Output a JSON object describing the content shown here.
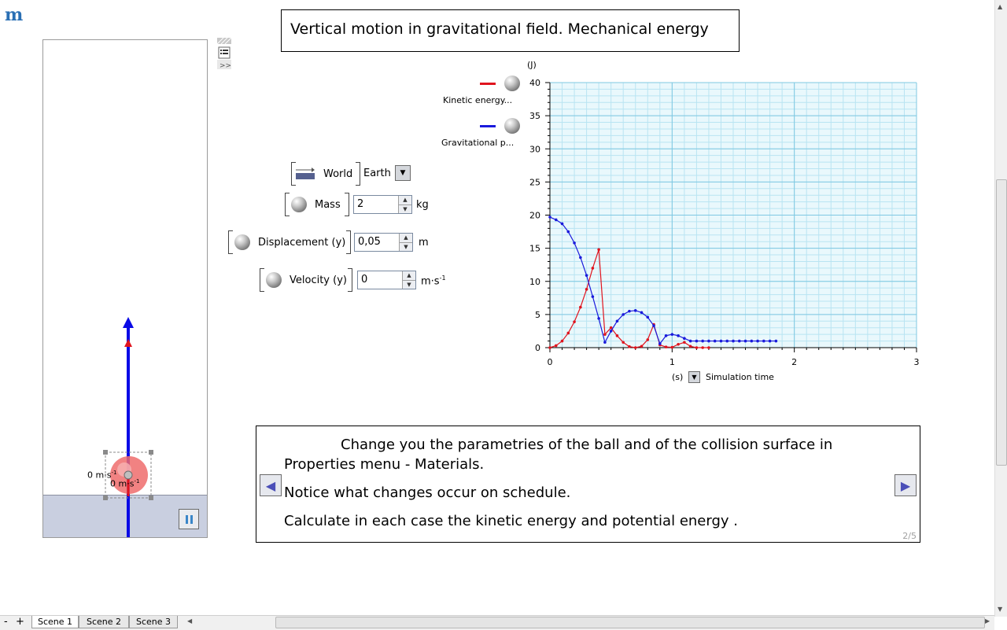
{
  "app": {
    "logo": "m"
  },
  "title": "Vertical motion in gravitational field. Mechanical energy",
  "scene": {
    "velocity_label_left": "0 m·s",
    "velocity_label_left_sup": "-1",
    "velocity_label_right": "0 m·s",
    "velocity_label_right_sup": "-1"
  },
  "controls": {
    "world": {
      "label": "World",
      "value": "Earth"
    },
    "mass": {
      "label": "Mass",
      "value": "2",
      "unit": "kg"
    },
    "displacement": {
      "label": "Displacement (y)",
      "value": "0,05",
      "unit": "m"
    },
    "velocity": {
      "label": "Velocity (y)",
      "value": "0",
      "unit": "m·s",
      "unit_sup": "-1"
    }
  },
  "legend": [
    {
      "label": "Kinetic energy...",
      "color": "#e0141e"
    },
    {
      "label": "Gravitational p...",
      "color": "#1a1adc"
    }
  ],
  "chart_data": {
    "type": "line",
    "ylabel": "(J)",
    "xlabel_unit": "(s)",
    "xlabel": "Simulation time",
    "xlim": [
      0,
      3
    ],
    "ylim": [
      0,
      40
    ],
    "x_ticks": [
      "0",
      "1",
      "2",
      "3"
    ],
    "y_ticks": [
      "0",
      "5",
      "10",
      "15",
      "20",
      "25",
      "30",
      "35",
      "40"
    ],
    "grid": true,
    "series": [
      {
        "name": "Kinetic energy...",
        "color": "#e0141e",
        "points": [
          [
            0,
            0
          ],
          [
            0.05,
            0.3
          ],
          [
            0.1,
            1.0
          ],
          [
            0.15,
            2.2
          ],
          [
            0.2,
            3.9
          ],
          [
            0.25,
            6.1
          ],
          [
            0.3,
            8.8
          ],
          [
            0.35,
            12.0
          ],
          [
            0.4,
            14.8
          ],
          [
            0.45,
            2.0
          ],
          [
            0.5,
            3.0
          ],
          [
            0.55,
            1.8
          ],
          [
            0.6,
            0.8
          ],
          [
            0.65,
            0.15
          ],
          [
            0.7,
            0.0
          ],
          [
            0.75,
            0.2
          ],
          [
            0.8,
            1.2
          ],
          [
            0.85,
            3.5
          ],
          [
            0.9,
            0.4
          ],
          [
            0.95,
            0.1
          ],
          [
            1.0,
            0.05
          ],
          [
            1.05,
            0.5
          ],
          [
            1.1,
            0.8
          ],
          [
            1.15,
            0.2
          ],
          [
            1.2,
            0.0
          ],
          [
            1.25,
            0.0
          ],
          [
            1.3,
            0.0
          ]
        ]
      },
      {
        "name": "Gravitational p...",
        "color": "#1a1adc",
        "points": [
          [
            0,
            19.7
          ],
          [
            0.05,
            19.3
          ],
          [
            0.1,
            18.7
          ],
          [
            0.15,
            17.5
          ],
          [
            0.2,
            15.8
          ],
          [
            0.25,
            13.6
          ],
          [
            0.3,
            10.9
          ],
          [
            0.35,
            7.7
          ],
          [
            0.4,
            4.4
          ],
          [
            0.45,
            0.8
          ],
          [
            0.5,
            2.5
          ],
          [
            0.55,
            4.0
          ],
          [
            0.6,
            5.0
          ],
          [
            0.65,
            5.5
          ],
          [
            0.7,
            5.6
          ],
          [
            0.75,
            5.3
          ],
          [
            0.8,
            4.6
          ],
          [
            0.85,
            3.3
          ],
          [
            0.9,
            0.6
          ],
          [
            0.95,
            1.8
          ],
          [
            1.0,
            2.0
          ],
          [
            1.05,
            1.8
          ],
          [
            1.1,
            1.4
          ],
          [
            1.15,
            1.0
          ],
          [
            1.2,
            1.0
          ],
          [
            1.25,
            1.0
          ],
          [
            1.3,
            1.0
          ],
          [
            1.35,
            1.0
          ],
          [
            1.4,
            1.0
          ],
          [
            1.45,
            1.0
          ],
          [
            1.5,
            1.0
          ],
          [
            1.55,
            1.0
          ],
          [
            1.6,
            1.0
          ],
          [
            1.65,
            1.0
          ],
          [
            1.7,
            1.0
          ],
          [
            1.75,
            1.0
          ],
          [
            1.8,
            1.0
          ],
          [
            1.85,
            1.0
          ]
        ]
      }
    ]
  },
  "message": {
    "line1": "Change you the parametries of the ball and of the collision surface in",
    "line2": "Properties menu - Materials.",
    "line3": "Notice what changes occur on schedule.",
    "line4": "Calculate in each case the kinetic energy and potential energy .",
    "page_indicator": "2/5"
  },
  "tabs": [
    {
      "label": "Scene 1"
    },
    {
      "label": "Scene 2"
    },
    {
      "label": "Scene 3"
    }
  ],
  "bottom_controls": {
    "minus": "-",
    "plus": "+"
  }
}
